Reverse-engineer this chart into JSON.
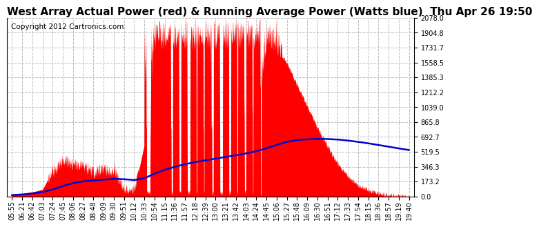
{
  "title": "West Array Actual Power (red) & Running Average Power (Watts blue)  Thu Apr 26 19:50",
  "copyright": "Copyright 2012 Cartronics.com",
  "background_color": "#ffffff",
  "plot_bg_color": "#ffffff",
  "grid_color": "#bbbbbb",
  "grid_style": "--",
  "ymin": 0.0,
  "ymax": 2078.0,
  "yticks": [
    0.0,
    173.2,
    346.3,
    519.5,
    692.7,
    865.8,
    1039.0,
    1212.2,
    1385.3,
    1558.5,
    1731.7,
    1904.8,
    2078.0
  ],
  "xtick_labels": [
    "05:55",
    "06:21",
    "06:42",
    "07:03",
    "07:24",
    "07:45",
    "08:06",
    "08:27",
    "08:48",
    "09:09",
    "09:30",
    "09:51",
    "10:12",
    "10:33",
    "10:54",
    "11:15",
    "11:36",
    "11:57",
    "12:18",
    "12:39",
    "13:00",
    "13:21",
    "13:42",
    "14:03",
    "14:24",
    "14:45",
    "15:06",
    "15:27",
    "15:48",
    "16:09",
    "16:30",
    "16:51",
    "17:12",
    "17:33",
    "17:54",
    "18:15",
    "18:36",
    "18:57",
    "19:19",
    "19:40"
  ],
  "red_color": "#ff0000",
  "blue_color": "#0000cd",
  "title_fontsize": 11,
  "copyright_fontsize": 7.5,
  "tick_fontsize": 7
}
